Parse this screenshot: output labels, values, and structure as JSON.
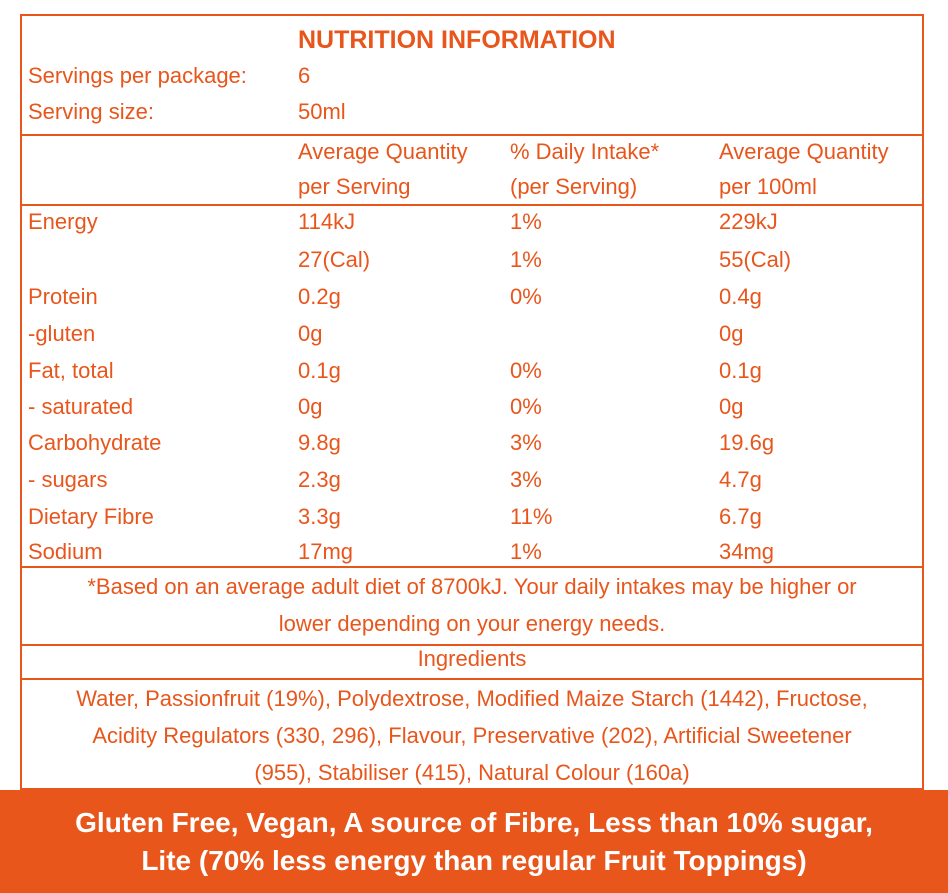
{
  "title": "NUTRITION INFORMATION",
  "servings_label": "Servings per package:",
  "servings_value": "6",
  "size_label": "Serving size:",
  "size_value": "50ml",
  "headers": {
    "col1_line1": "Average Quantity",
    "col1_line2": "per Serving",
    "col2_line1": "% Daily Intake*",
    "col2_line2": "(per Serving)",
    "col3_line1": "Average Quantity",
    "col3_line2": "per 100ml"
  },
  "rows": [
    {
      "name": "Energy",
      "serving": "114kJ",
      "daily": "1%",
      "per100": "229kJ"
    },
    {
      "name": "",
      "serving": "27(Cal)",
      "daily": "1%",
      "per100": "55(Cal)"
    },
    {
      "name": "Protein",
      "serving": "0.2g",
      "daily": "0%",
      "per100": "0.4g"
    },
    {
      "name": "-gluten",
      "serving": "0g",
      "daily": "",
      "per100": "0g"
    },
    {
      "name": "Fat, total",
      "serving": "0.1g",
      "daily": "0%",
      "per100": "0.1g"
    },
    {
      "name": "- saturated",
      "serving": "0g",
      "daily": "0%",
      "per100": "0g"
    },
    {
      "name": "Carbohydrate",
      "serving": "9.8g",
      "daily": "3%",
      "per100": "19.6g"
    },
    {
      "name": "- sugars",
      "serving": "2.3g",
      "daily": "3%",
      "per100": "4.7g"
    },
    {
      "name": "Dietary Fibre",
      "serving": "3.3g",
      "daily": "11%",
      "per100": "6.7g"
    },
    {
      "name": "Sodium",
      "serving": "17mg",
      "daily": "1%",
      "per100": "34mg"
    }
  ],
  "footnote_line1": "*Based on an average adult diet of 8700kJ. Your daily intakes may be higher or",
  "footnote_line2": "lower depending on your energy needs.",
  "ingredients_heading": "Ingredients",
  "ingredients_line1": "Water, Passionfruit (19%), Polydextrose, Modified Maize Starch (1442), Fructose,",
  "ingredients_line2": "Acidity Regulators (330, 296), Flavour, Preservative (202), Artificial Sweetener",
  "ingredients_line3": "(955), Stabiliser (415), Natural Colour (160a)",
  "banner_line1": "Gluten Free, Vegan, A source of Fibre, Less than 10% sugar,",
  "banner_line2": "Lite (70% less energy than regular Fruit Toppings)",
  "colors": {
    "accent": "#e8561c",
    "background": "#ffffff",
    "banner_text": "#ffffff"
  }
}
